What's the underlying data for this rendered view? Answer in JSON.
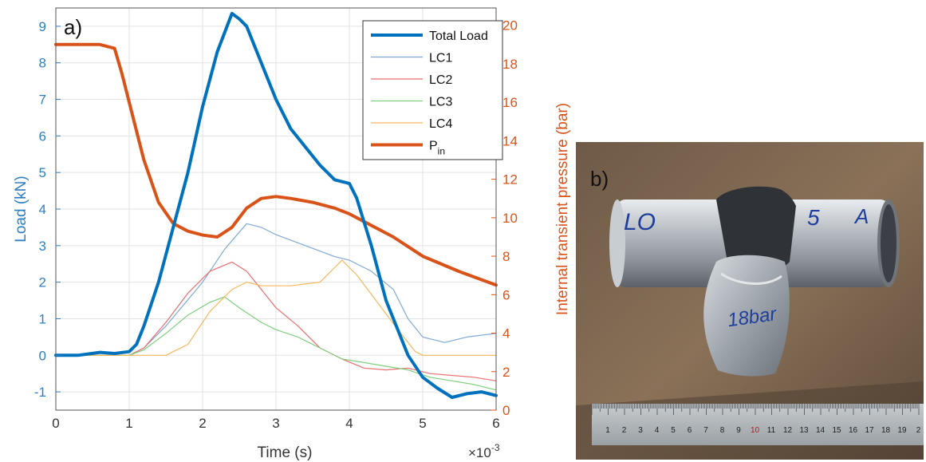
{
  "panel_a_label": "a)",
  "panel_b_label": "b)",
  "photo": {
    "tube_marks": [
      "LO",
      "5",
      "A"
    ],
    "pressure_mark": "18bar",
    "ruler_ticks": [
      "1",
      "2",
      "3",
      "4",
      "5",
      "6",
      "7",
      "8",
      "9",
      "10",
      "11",
      "12",
      "13",
      "14",
      "15",
      "16",
      "17",
      "18",
      "19",
      "2"
    ]
  },
  "colors": {
    "total_load": "#0072bd",
    "lc1": "#7fa9d4",
    "lc2": "#ea6f6f",
    "lc3": "#7fcf7f",
    "lc4": "#f7b85e",
    "pin": "#d95319",
    "left_axis": "#2f7fc1",
    "right_axis": "#d95319"
  },
  "chart_data": {
    "type": "line",
    "xlabel": "Time (s)",
    "x_multiplier": "×10",
    "x_multiplier_exp": "-3",
    "ylabel": "Load (kN)",
    "ylabel_right": "Internal transient pressure (bar)",
    "xlim": [
      0,
      6
    ],
    "ylim": [
      -1.5,
      9.5
    ],
    "ylim_right": [
      0,
      20.9
    ],
    "xticks": [
      "0",
      "1",
      "2",
      "3",
      "4",
      "5",
      "6"
    ],
    "yticks": [
      "-1",
      "0",
      "1",
      "2",
      "3",
      "4",
      "5",
      "6",
      "7",
      "8",
      "9"
    ],
    "yticks_right": [
      "0",
      "2",
      "4",
      "6",
      "8",
      "10",
      "12",
      "14",
      "16",
      "18",
      "20"
    ],
    "grid": true,
    "legend_position": "top-right",
    "legend": [
      {
        "label": "Total Load",
        "key": "total_load"
      },
      {
        "label": "LC1",
        "key": "lc1"
      },
      {
        "label": "LC2",
        "key": "lc2"
      },
      {
        "label": "LC3",
        "key": "lc3"
      },
      {
        "label": "LC4",
        "key": "lc4"
      },
      {
        "label": "P",
        "sub": "in",
        "key": "pin"
      }
    ],
    "series": [
      {
        "name": "Total Load",
        "key": "total_load",
        "axis": "left",
        "x": [
          0,
          0.3,
          0.6,
          0.8,
          1.0,
          1.1,
          1.2,
          1.4,
          1.6,
          1.8,
          2.0,
          2.2,
          2.4,
          2.5,
          2.6,
          2.8,
          3.0,
          3.2,
          3.4,
          3.6,
          3.8,
          4.0,
          4.1,
          4.3,
          4.5,
          4.7,
          4.8,
          5.0,
          5.2,
          5.4,
          5.6,
          5.8,
          6.0
        ],
        "y": [
          0,
          0,
          0.08,
          0.05,
          0.1,
          0.3,
          0.8,
          2.0,
          3.5,
          5.0,
          6.8,
          8.3,
          9.35,
          9.2,
          9.0,
          8.0,
          7.0,
          6.2,
          5.7,
          5.2,
          4.8,
          4.7,
          4.3,
          3.0,
          1.5,
          0.5,
          0.0,
          -0.6,
          -0.9,
          -1.15,
          -1.05,
          -1.0,
          -1.1
        ]
      },
      {
        "name": "LC1",
        "key": "lc1",
        "axis": "left",
        "x": [
          0,
          1.0,
          1.2,
          1.5,
          2.0,
          2.3,
          2.6,
          2.8,
          3.0,
          3.4,
          3.8,
          4.0,
          4.3,
          4.6,
          4.8,
          5.0,
          5.3,
          5.6,
          6.0
        ],
        "y": [
          0,
          0,
          0.2,
          0.8,
          2.0,
          2.9,
          3.6,
          3.5,
          3.3,
          3.0,
          2.7,
          2.6,
          2.3,
          1.8,
          1.0,
          0.5,
          0.35,
          0.5,
          0.6
        ]
      },
      {
        "name": "LC2",
        "key": "lc2",
        "axis": "left",
        "x": [
          0,
          1.0,
          1.2,
          1.5,
          1.8,
          2.1,
          2.4,
          2.6,
          2.8,
          3.0,
          3.3,
          3.6,
          3.9,
          4.2,
          4.5,
          4.8,
          5.1,
          5.4,
          5.7,
          6.0
        ],
        "y": [
          0,
          0,
          0.2,
          0.9,
          1.7,
          2.3,
          2.55,
          2.3,
          1.8,
          1.3,
          0.8,
          0.2,
          -0.1,
          -0.35,
          -0.4,
          -0.35,
          -0.5,
          -0.55,
          -0.6,
          -0.7
        ]
      },
      {
        "name": "LC3",
        "key": "lc3",
        "axis": "left",
        "x": [
          0,
          1.0,
          1.2,
          1.5,
          1.8,
          2.1,
          2.3,
          2.5,
          2.8,
          3.0,
          3.3,
          3.6,
          3.9,
          4.2,
          4.5,
          4.8,
          5.1,
          5.4,
          5.7,
          6.0
        ],
        "y": [
          0,
          0,
          0.15,
          0.6,
          1.1,
          1.45,
          1.6,
          1.3,
          0.9,
          0.7,
          0.5,
          0.2,
          -0.1,
          -0.2,
          -0.3,
          -0.4,
          -0.6,
          -0.7,
          -0.8,
          -0.95
        ]
      },
      {
        "name": "LC4",
        "key": "lc4",
        "axis": "left",
        "x": [
          0,
          1.5,
          1.8,
          2.1,
          2.4,
          2.6,
          2.8,
          3.2,
          3.6,
          3.8,
          3.9,
          4.1,
          4.4,
          4.7,
          4.9,
          5.0,
          5.5,
          6.0
        ],
        "y": [
          0,
          0,
          0.3,
          1.2,
          1.8,
          2.0,
          1.9,
          1.9,
          2.0,
          2.4,
          2.6,
          2.2,
          1.4,
          0.6,
          0.1,
          0.0,
          0.0,
          0.0
        ]
      },
      {
        "name": "P_in",
        "key": "pin",
        "axis": "right",
        "x": [
          0,
          0.3,
          0.6,
          0.8,
          0.9,
          1.0,
          1.2,
          1.4,
          1.6,
          1.8,
          2.0,
          2.2,
          2.4,
          2.6,
          2.8,
          3.0,
          3.2,
          3.5,
          3.8,
          4.0,
          4.2,
          4.6,
          5.0,
          5.5,
          6.0
        ],
        "y": [
          19.0,
          19.0,
          19.0,
          18.8,
          17.5,
          16.0,
          13.0,
          10.8,
          9.7,
          9.3,
          9.1,
          9.0,
          9.5,
          10.5,
          11.0,
          11.1,
          11.0,
          10.8,
          10.5,
          10.2,
          9.8,
          9.0,
          8.0,
          7.2,
          6.5
        ]
      }
    ]
  }
}
